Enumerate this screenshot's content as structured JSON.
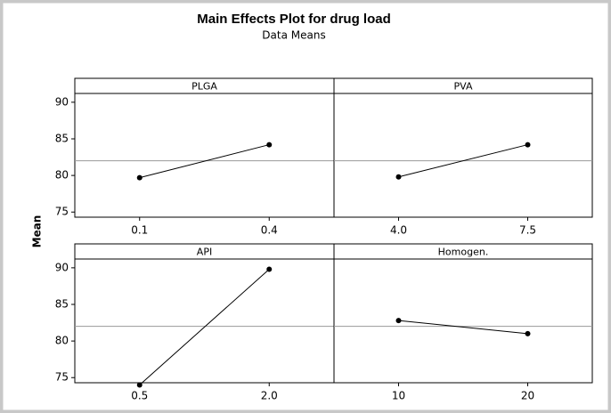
{
  "chart_data": {
    "type": "line",
    "title": "Main Effects Plot for drug load",
    "subtitle": "Data Means",
    "ylabel": "Mean",
    "ylim": [
      74.3,
      91.2
    ],
    "yticks": [
      75,
      80,
      85,
      90
    ],
    "reference_line": 82.0,
    "color": "#000000",
    "panels": [
      {
        "name": "PLGA",
        "categories": [
          "0.1",
          "0.4"
        ],
        "values": [
          79.7,
          84.2
        ]
      },
      {
        "name": "PVA",
        "categories": [
          "4.0",
          "7.5"
        ],
        "values": [
          79.8,
          84.2
        ]
      },
      {
        "name": "API",
        "categories": [
          "0.5",
          "2.0"
        ],
        "values": [
          74.0,
          89.8
        ]
      },
      {
        "name": "Homogen.",
        "categories": [
          "10",
          "20"
        ],
        "values": [
          82.8,
          81.0
        ]
      }
    ]
  }
}
